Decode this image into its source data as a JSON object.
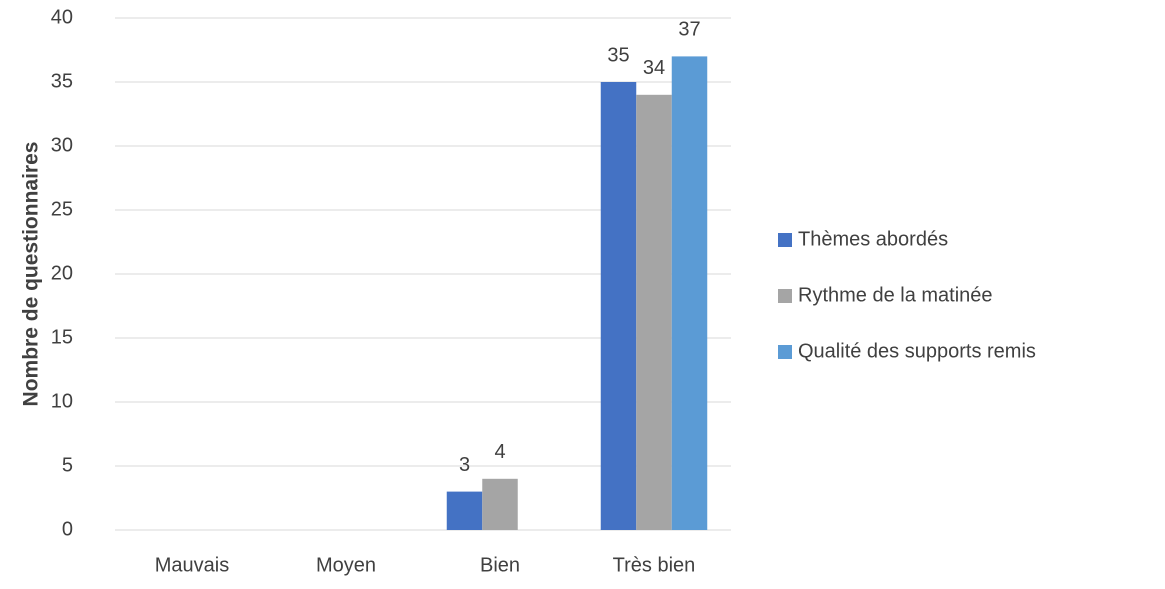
{
  "chart_data": {
    "type": "bar",
    "y_label": "Nombre de questionnaires",
    "categories": [
      "Mauvais",
      "Moyen",
      "Bien",
      "Très bien"
    ],
    "series": [
      {
        "name": "Thèmes abordés",
        "color": "#4472c4",
        "values": [
          null,
          null,
          3,
          35
        ]
      },
      {
        "name": "Rythme de la matinée",
        "color": "#a5a5a5",
        "values": [
          null,
          null,
          4,
          34
        ]
      },
      {
        "name": "Qualité des supports remis",
        "color": "#5b9bd5",
        "values": [
          null,
          null,
          null,
          37
        ]
      }
    ],
    "ylim": [
      0,
      40
    ],
    "yticks": [
      0,
      5,
      10,
      15,
      20,
      25,
      30,
      35,
      40
    ],
    "grid": true,
    "legend": "right"
  }
}
